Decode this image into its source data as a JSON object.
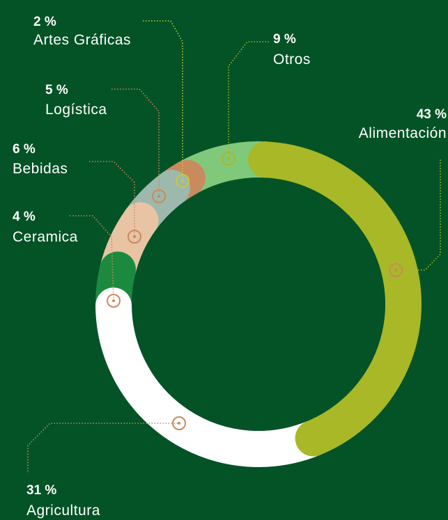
{
  "chart_data": {
    "type": "donut",
    "categories": [
      "Alimentación",
      "Agricultura",
      "Ceramica",
      "Bebidas",
      "Logística",
      "Artes Gráficas",
      "Otros"
    ],
    "values": [
      43,
      31,
      4,
      6,
      5,
      2,
      9
    ],
    "value_labels": [
      "43 %",
      "31 %",
      "4 %",
      "6 %",
      "5 %",
      "2 %",
      "9 %"
    ],
    "colors": [
      "#a8b826",
      "#ffffff",
      "#1b8a3e",
      "#e8c4a4",
      "#9db8ad",
      "#c98a5e",
      "#80c97a"
    ]
  }
}
